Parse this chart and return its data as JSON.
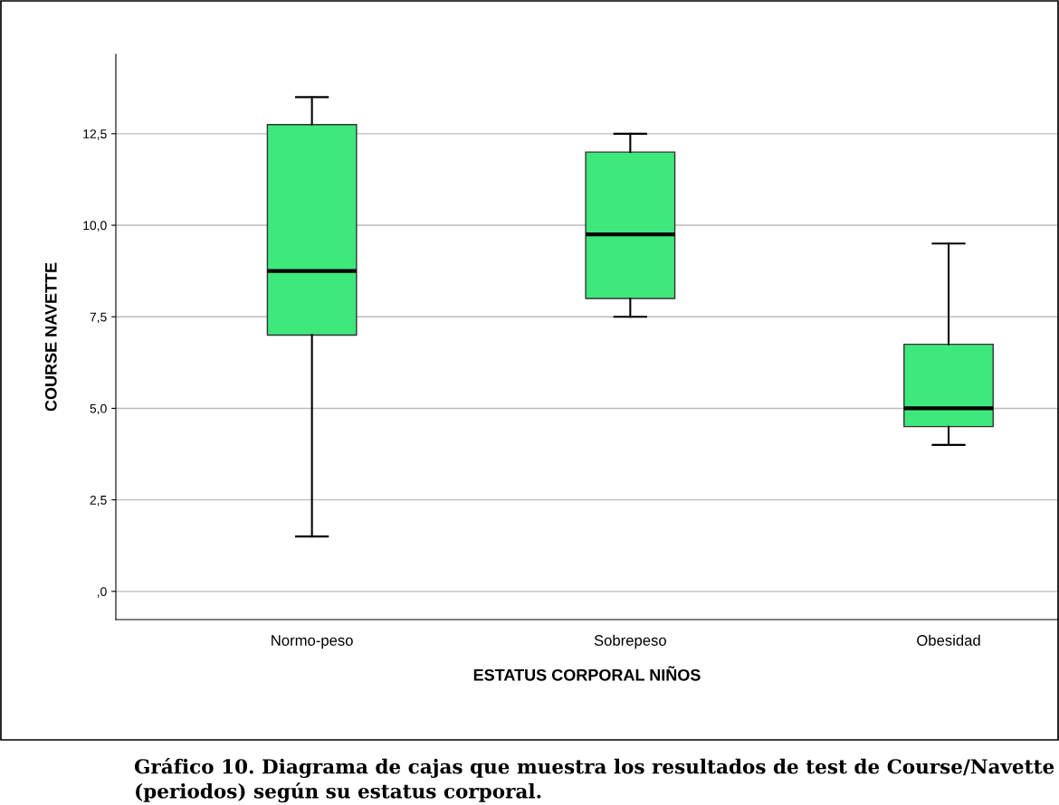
{
  "chart_data": {
    "type": "box",
    "xlabel": "ESTATUS CORPORAL NIÑOS",
    "ylabel": "COURSE NAVETTE",
    "categories": [
      "Normo-peso",
      "Sobrepeso",
      "Obesidad"
    ],
    "boxes": [
      {
        "low": 1.5,
        "q1": 7.0,
        "median": 8.75,
        "q3": 12.75,
        "high": 13.5
      },
      {
        "low": 7.5,
        "q1": 8.0,
        "median": 9.75,
        "q3": 12.0,
        "high": 12.5
      },
      {
        "low": 4.0,
        "q1": 4.5,
        "median": 5.0,
        "q3": 6.75,
        "high": 9.5
      }
    ],
    "color": "#3ee87c",
    "ylim": [
      -0.77,
      14.67
    ],
    "yticks": [
      {
        "value": 0,
        "label": ",0"
      },
      {
        "value": 2.5,
        "label": "2,5"
      },
      {
        "value": 5,
        "label": "5,0"
      },
      {
        "value": 7.5,
        "label": "7,5"
      },
      {
        "value": 10,
        "label": "10,0"
      },
      {
        "value": 12.5,
        "label": "12,5"
      }
    ],
    "grid": "y",
    "annotations": [
      "Gráfico 10. Diagrama de cajas que muestra los resultados de test de Course/Navette (periodos) según su estatus corporal."
    ]
  }
}
